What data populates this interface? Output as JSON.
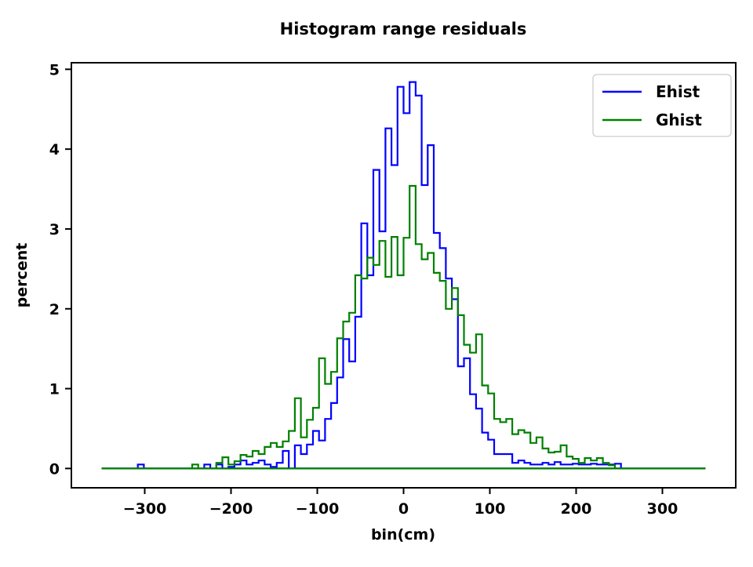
{
  "title": "Histogram range residuals",
  "axes": {
    "xlabel": "bin(cm)",
    "ylabel": "percent",
    "xlim": [
      -385,
      385
    ],
    "ylim": [
      -0.242,
      5.082
    ],
    "xticks": [
      -300,
      -200,
      -100,
      0,
      100,
      200,
      300
    ],
    "xtick_labels": [
      "−300",
      "−200",
      "−100",
      "0",
      "100",
      "200",
      "300"
    ],
    "yticks": [
      0,
      1,
      2,
      3,
      4,
      5
    ],
    "ytick_labels": [
      "0",
      "1",
      "2",
      "3",
      "4",
      "5"
    ],
    "spine_color": "#000000",
    "background": "#ffffff"
  },
  "legend": {
    "position": "upper right",
    "entries": [
      {
        "label": "Ehist",
        "color": "#0000ff"
      },
      {
        "label": "Ghist",
        "color": "#008000"
      }
    ]
  },
  "chart_data": {
    "type": "step-histogram",
    "title": "Histogram range residuals",
    "xlabel": "bin(cm)",
    "ylabel": "percent",
    "bin_start": -350,
    "bin_width": 7,
    "n_bins": 100,
    "grid": false,
    "legend_position": "upper right",
    "series": [
      {
        "name": "Ehist",
        "color": "#0000ff",
        "values": [
          0,
          0,
          0,
          0,
          0,
          0,
          0.05,
          0,
          0,
          0,
          0,
          0,
          0,
          0,
          0,
          0,
          0,
          0.05,
          0,
          0.05,
          0,
          0.02,
          0.05,
          0.1,
          0.05,
          0.07,
          0.1,
          0.05,
          0.02,
          0.07,
          0.22,
          0,
          0.29,
          0.18,
          0.3,
          0.47,
          0.35,
          0.62,
          0.82,
          1.14,
          1.62,
          1.34,
          1.9,
          3.07,
          2.42,
          3.74,
          2.97,
          4.26,
          3.8,
          4.78,
          4.45,
          4.84,
          4.67,
          3.55,
          4.05,
          2.95,
          2.76,
          2.38,
          2.12,
          1.28,
          1.38,
          0.93,
          0.75,
          0.45,
          0.36,
          0.18,
          0.18,
          0.18,
          0.07,
          0.1,
          0.07,
          0.05,
          0.05,
          0.07,
          0.05,
          0.08,
          0.05,
          0.05,
          0.06,
          0.05,
          0.05,
          0.06,
          0.05,
          0.05,
          0.05,
          0.06,
          0,
          0,
          0,
          0,
          0,
          0,
          0,
          0,
          0,
          0,
          0,
          0,
          0,
          0
        ]
      },
      {
        "name": "Ghist",
        "color": "#008000",
        "values": [
          0,
          0,
          0,
          0,
          0,
          0,
          0,
          0,
          0,
          0,
          0,
          0,
          0,
          0,
          0,
          0.05,
          0,
          0,
          0,
          0.07,
          0.14,
          0.05,
          0.09,
          0.17,
          0.15,
          0.22,
          0.18,
          0.27,
          0.32,
          0.27,
          0.34,
          0.47,
          0.88,
          0.39,
          0.61,
          0.76,
          1.38,
          1.06,
          1.21,
          1.63,
          1.84,
          1.95,
          2.42,
          2.38,
          2.64,
          2.55,
          2.85,
          2.4,
          2.9,
          2.42,
          2.89,
          3.54,
          2.81,
          2.62,
          2.7,
          2.45,
          2.35,
          2.0,
          2.26,
          1.92,
          1.55,
          1.45,
          1.68,
          1.04,
          0.94,
          0.62,
          0.58,
          0.62,
          0.43,
          0.48,
          0.45,
          0.32,
          0.39,
          0.25,
          0.2,
          0.21,
          0.29,
          0.15,
          0.12,
          0.07,
          0.13,
          0.1,
          0.13,
          0.07,
          0.04,
          0,
          0,
          0,
          0,
          0,
          0,
          0,
          0,
          0,
          0,
          0,
          0,
          0,
          0,
          0
        ]
      }
    ]
  },
  "style": {
    "line_width": 2.2,
    "legend_border_color": "#cccccc",
    "text_color": "#000000"
  }
}
